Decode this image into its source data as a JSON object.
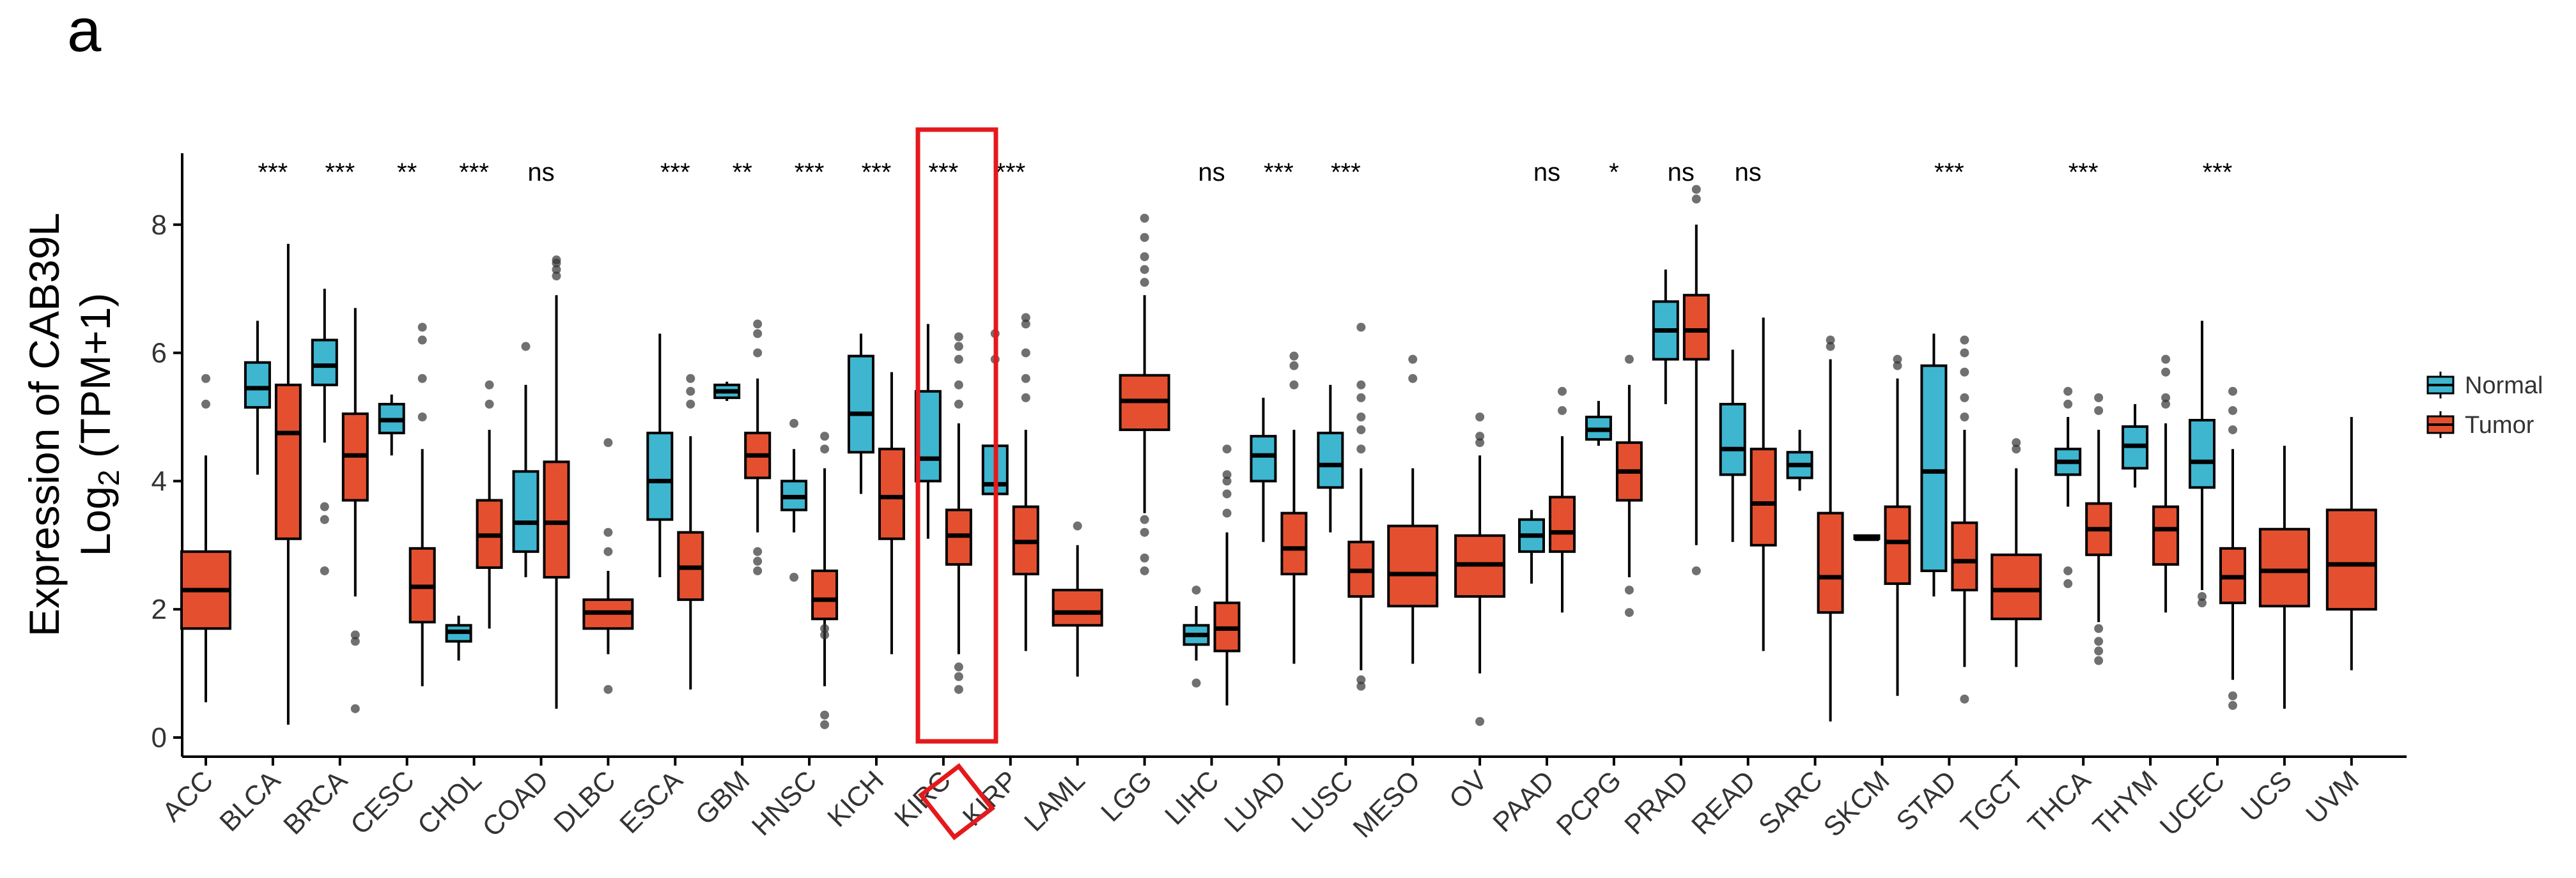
{
  "panel_label": "a",
  "chart_data": {
    "type": "boxplot",
    "title": "",
    "ylabel_line1": "Expression of CAB39L",
    "ylabel_line2_prefix": "Log",
    "ylabel_line2_sub": "2",
    "ylabel_line2_suffix": " (TPM+1)",
    "xlabel": "",
    "ylim": [
      -0.2,
      9.1
    ],
    "yticks": [
      "0",
      "2",
      "4",
      "6",
      "8"
    ],
    "legend": [
      {
        "name": "Normal",
        "color": "#3EB6D0"
      },
      {
        "name": "Tumor",
        "color": "#E4502F"
      }
    ],
    "highlight": "KIRC",
    "categories": [
      "ACC",
      "BLCA",
      "BRCA",
      "CESC",
      "CHOL",
      "COAD",
      "DLBC",
      "ESCA",
      "GBM",
      "HNSC",
      "KICH",
      "KIRC",
      "KIRP",
      "LAML",
      "LGG",
      "LIHC",
      "LUAD",
      "LUSC",
      "MESO",
      "OV",
      "PAAD",
      "PCPG",
      "PRAD",
      "READ",
      "SARC",
      "SKCM",
      "STAD",
      "TGCT",
      "THCA",
      "THYM",
      "UCEC",
      "UCS",
      "UVM"
    ],
    "significance": [
      "",
      "***",
      "***",
      "**",
      "***",
      "ns",
      "",
      "***",
      "**",
      "***",
      "***",
      "***",
      "***",
      "",
      "",
      "ns",
      "***",
      "***",
      "",
      "",
      "ns",
      "*",
      "ns",
      "ns",
      "",
      "",
      "***",
      "",
      "***",
      "",
      "***",
      "",
      ""
    ],
    "boxes": [
      {
        "cat": "ACC",
        "group": "Tumor",
        "stats": [
          0.55,
          1.7,
          2.3,
          2.9,
          4.4
        ],
        "outliers": [
          5.2,
          5.6
        ]
      },
      {
        "cat": "BLCA",
        "group": "Normal",
        "stats": [
          4.1,
          5.15,
          5.45,
          5.85,
          6.5
        ],
        "outliers": []
      },
      {
        "cat": "BLCA",
        "group": "Tumor",
        "stats": [
          0.2,
          3.1,
          4.75,
          5.5,
          7.7
        ],
        "outliers": []
      },
      {
        "cat": "BRCA",
        "group": "Normal",
        "stats": [
          4.6,
          5.5,
          5.8,
          6.2,
          7.0
        ],
        "outliers": [
          3.4,
          3.6,
          2.6
        ]
      },
      {
        "cat": "BRCA",
        "group": "Tumor",
        "stats": [
          2.2,
          3.7,
          4.4,
          5.05,
          6.7
        ],
        "outliers": [
          1.5,
          1.6,
          0.45
        ]
      },
      {
        "cat": "CESC",
        "group": "Normal",
        "stats": [
          4.4,
          4.75,
          4.95,
          5.2,
          5.35
        ],
        "outliers": []
      },
      {
        "cat": "CESC",
        "group": "Tumor",
        "stats": [
          0.8,
          1.8,
          2.35,
          2.95,
          4.5
        ],
        "outliers": [
          5.0,
          5.6,
          6.2,
          6.4
        ]
      },
      {
        "cat": "CHOL",
        "group": "Normal",
        "stats": [
          1.2,
          1.5,
          1.65,
          1.75,
          1.9
        ],
        "outliers": []
      },
      {
        "cat": "CHOL",
        "group": "Tumor",
        "stats": [
          1.7,
          2.65,
          3.15,
          3.7,
          4.8
        ],
        "outliers": [
          5.2,
          5.5
        ]
      },
      {
        "cat": "COAD",
        "group": "Normal",
        "stats": [
          2.5,
          2.9,
          3.35,
          4.15,
          5.5
        ],
        "outliers": [
          6.1
        ]
      },
      {
        "cat": "COAD",
        "group": "Tumor",
        "stats": [
          0.45,
          2.5,
          3.35,
          4.3,
          6.9
        ],
        "outliers": [
          7.2,
          7.3,
          7.4,
          7.45
        ]
      },
      {
        "cat": "DLBC",
        "group": "Tumor",
        "stats": [
          1.3,
          1.7,
          1.95,
          2.15,
          2.6
        ],
        "outliers": [
          0.75,
          2.9,
          3.2,
          4.6
        ]
      },
      {
        "cat": "ESCA",
        "group": "Normal",
        "stats": [
          2.5,
          3.4,
          4.0,
          4.75,
          6.3
        ],
        "outliers": []
      },
      {
        "cat": "ESCA",
        "group": "Tumor",
        "stats": [
          0.75,
          2.15,
          2.65,
          3.2,
          4.7
        ],
        "outliers": [
          5.2,
          5.4,
          5.6
        ]
      },
      {
        "cat": "GBM",
        "group": "Normal",
        "stats": [
          5.25,
          5.3,
          5.4,
          5.5,
          5.55
        ],
        "outliers": []
      },
      {
        "cat": "GBM",
        "group": "Tumor",
        "stats": [
          3.2,
          4.05,
          4.4,
          4.75,
          5.6
        ],
        "outliers": [
          2.6,
          2.75,
          2.9,
          6.0,
          6.3,
          6.45
        ]
      },
      {
        "cat": "HNSC",
        "group": "Normal",
        "stats": [
          3.2,
          3.55,
          3.75,
          4.0,
          4.5
        ],
        "outliers": [
          2.5,
          4.9
        ]
      },
      {
        "cat": "HNSC",
        "group": "Tumor",
        "stats": [
          0.8,
          1.85,
          2.15,
          2.6,
          4.2
        ],
        "outliers": [
          0.2,
          0.35,
          1.6,
          1.7,
          4.5,
          4.7
        ]
      },
      {
        "cat": "KICH",
        "group": "Normal",
        "stats": [
          3.8,
          4.45,
          5.05,
          5.95,
          6.3
        ],
        "outliers": []
      },
      {
        "cat": "KICH",
        "group": "Tumor",
        "stats": [
          1.3,
          3.1,
          3.75,
          4.5,
          5.7
        ],
        "outliers": []
      },
      {
        "cat": "KIRC",
        "group": "Normal",
        "stats": [
          3.1,
          4.0,
          4.35,
          5.4,
          6.45
        ],
        "outliers": []
      },
      {
        "cat": "KIRC",
        "group": "Tumor",
        "stats": [
          1.3,
          2.7,
          3.15,
          3.55,
          4.9
        ],
        "outliers": [
          0.75,
          0.95,
          1.1,
          5.2,
          5.5,
          5.9,
          6.1,
          6.25
        ]
      },
      {
        "cat": "KIRP",
        "group": "Normal",
        "stats": [
          3.5,
          3.8,
          3.95,
          4.55,
          5.6
        ],
        "outliers": [
          5.9,
          6.3
        ]
      },
      {
        "cat": "KIRP",
        "group": "Tumor",
        "stats": [
          1.35,
          2.55,
          3.05,
          3.6,
          4.8
        ],
        "outliers": [
          5.3,
          5.6,
          6.0,
          6.45,
          6.55
        ]
      },
      {
        "cat": "LAML",
        "group": "Tumor",
        "stats": [
          0.95,
          1.75,
          1.95,
          2.3,
          3.0
        ],
        "outliers": [
          3.3
        ]
      },
      {
        "cat": "LGG",
        "group": "Tumor",
        "stats": [
          3.5,
          4.8,
          5.25,
          5.65,
          6.9
        ],
        "outliers": [
          2.6,
          2.8,
          3.2,
          3.4,
          7.1,
          7.3,
          7.5,
          7.8,
          8.1
        ]
      },
      {
        "cat": "LIHC",
        "group": "Normal",
        "stats": [
          1.2,
          1.45,
          1.6,
          1.75,
          2.05
        ],
        "outliers": [
          0.85,
          2.3
        ]
      },
      {
        "cat": "LIHC",
        "group": "Tumor",
        "stats": [
          0.5,
          1.35,
          1.7,
          2.1,
          3.2
        ],
        "outliers": [
          3.5,
          3.8,
          4.0,
          4.1,
          4.5
        ]
      },
      {
        "cat": "LUAD",
        "group": "Normal",
        "stats": [
          3.05,
          4.0,
          4.4,
          4.7,
          5.3
        ],
        "outliers": []
      },
      {
        "cat": "LUAD",
        "group": "Tumor",
        "stats": [
          1.15,
          2.55,
          2.95,
          3.5,
          4.8
        ],
        "outliers": [
          5.5,
          5.8,
          5.95
        ]
      },
      {
        "cat": "LUSC",
        "group": "Normal",
        "stats": [
          3.2,
          3.9,
          4.25,
          4.75,
          5.5
        ],
        "outliers": []
      },
      {
        "cat": "LUSC",
        "group": "Tumor",
        "stats": [
          1.05,
          2.2,
          2.6,
          3.05,
          4.2
        ],
        "outliers": [
          0.8,
          0.9,
          4.5,
          4.8,
          5.0,
          5.3,
          5.5,
          6.4
        ]
      },
      {
        "cat": "MESO",
        "group": "Tumor",
        "stats": [
          1.15,
          2.05,
          2.55,
          3.3,
          4.2
        ],
        "outliers": [
          5.6,
          5.9
        ]
      },
      {
        "cat": "OV",
        "group": "Tumor",
        "stats": [
          1.0,
          2.2,
          2.7,
          3.15,
          4.4
        ],
        "outliers": [
          0.25,
          4.6,
          4.7,
          5.0
        ]
      },
      {
        "cat": "PAAD",
        "group": "Normal",
        "stats": [
          2.4,
          2.9,
          3.15,
          3.4,
          3.55
        ],
        "outliers": []
      },
      {
        "cat": "PAAD",
        "group": "Tumor",
        "stats": [
          1.95,
          2.9,
          3.2,
          3.75,
          4.7
        ],
        "outliers": [
          5.1,
          5.4
        ]
      },
      {
        "cat": "PCPG",
        "group": "Normal",
        "stats": [
          4.55,
          4.65,
          4.8,
          5.0,
          5.25
        ],
        "outliers": []
      },
      {
        "cat": "PCPG",
        "group": "Tumor",
        "stats": [
          2.5,
          3.7,
          4.15,
          4.6,
          5.5
        ],
        "outliers": [
          1.95,
          2.3,
          5.9
        ]
      },
      {
        "cat": "PRAD",
        "group": "Normal",
        "stats": [
          5.2,
          5.9,
          6.35,
          6.8,
          7.3
        ],
        "outliers": []
      },
      {
        "cat": "PRAD",
        "group": "Tumor",
        "stats": [
          3.0,
          5.9,
          6.35,
          6.9,
          8.0
        ],
        "outliers": [
          2.6,
          8.4,
          8.55
        ]
      },
      {
        "cat": "READ",
        "group": "Normal",
        "stats": [
          3.05,
          4.1,
          4.5,
          5.2,
          6.05
        ],
        "outliers": []
      },
      {
        "cat": "READ",
        "group": "Tumor",
        "stats": [
          1.35,
          3.0,
          3.65,
          4.5,
          6.55
        ],
        "outliers": []
      },
      {
        "cat": "SARC",
        "group": "Normal",
        "stats": [
          3.85,
          4.05,
          4.25,
          4.45,
          4.8
        ],
        "outliers": []
      },
      {
        "cat": "SARC",
        "group": "Tumor",
        "stats": [
          0.25,
          1.95,
          2.5,
          3.5,
          5.9
        ],
        "outliers": [
          6.1,
          6.2
        ]
      },
      {
        "cat": "SKCM",
        "group": "Normal",
        "stats": [
          3.1,
          3.1,
          3.1,
          3.15,
          3.15
        ],
        "outliers": []
      },
      {
        "cat": "SKCM",
        "group": "Tumor",
        "stats": [
          0.65,
          2.4,
          3.05,
          3.6,
          5.6
        ],
        "outliers": [
          5.8,
          5.9
        ]
      },
      {
        "cat": "STAD",
        "group": "Normal",
        "stats": [
          2.2,
          2.6,
          4.15,
          5.8,
          6.3
        ],
        "outliers": []
      },
      {
        "cat": "STAD",
        "group": "Tumor",
        "stats": [
          1.1,
          2.3,
          2.75,
          3.35,
          4.8
        ],
        "outliers": [
          0.6,
          5.0,
          5.3,
          5.7,
          6.0,
          6.2
        ]
      },
      {
        "cat": "TGCT",
        "group": "Tumor",
        "stats": [
          1.1,
          1.85,
          2.3,
          2.85,
          4.2
        ],
        "outliers": [
          4.5,
          4.6
        ]
      },
      {
        "cat": "THCA",
        "group": "Normal",
        "stats": [
          3.6,
          4.1,
          4.3,
          4.5,
          5.0
        ],
        "outliers": [
          2.4,
          2.6,
          5.2,
          5.4
        ]
      },
      {
        "cat": "THCA",
        "group": "Tumor",
        "stats": [
          1.8,
          2.85,
          3.25,
          3.65,
          4.8
        ],
        "outliers": [
          1.2,
          1.35,
          1.5,
          1.7,
          5.1,
          5.3
        ]
      },
      {
        "cat": "THYM",
        "group": "Normal",
        "stats": [
          3.9,
          4.2,
          4.55,
          4.85,
          5.2
        ],
        "outliers": []
      },
      {
        "cat": "THYM",
        "group": "Tumor",
        "stats": [
          1.95,
          2.7,
          3.25,
          3.6,
          4.9
        ],
        "outliers": [
          5.2,
          5.3,
          5.7,
          5.9
        ]
      },
      {
        "cat": "UCEC",
        "group": "Normal",
        "stats": [
          2.3,
          3.9,
          4.3,
          4.95,
          6.5
        ],
        "outliers": [
          2.1,
          2.2
        ]
      },
      {
        "cat": "UCEC",
        "group": "Tumor",
        "stats": [
          0.9,
          2.1,
          2.5,
          2.95,
          4.5
        ],
        "outliers": [
          0.5,
          0.65,
          4.8,
          5.1,
          5.4
        ]
      },
      {
        "cat": "UCS",
        "group": "Tumor",
        "stats": [
          0.45,
          2.05,
          2.6,
          3.25,
          4.55
        ],
        "outliers": []
      },
      {
        "cat": "UVM",
        "group": "Tumor",
        "stats": [
          1.05,
          2.0,
          2.7,
          3.55,
          5.0
        ],
        "outliers": []
      }
    ]
  }
}
